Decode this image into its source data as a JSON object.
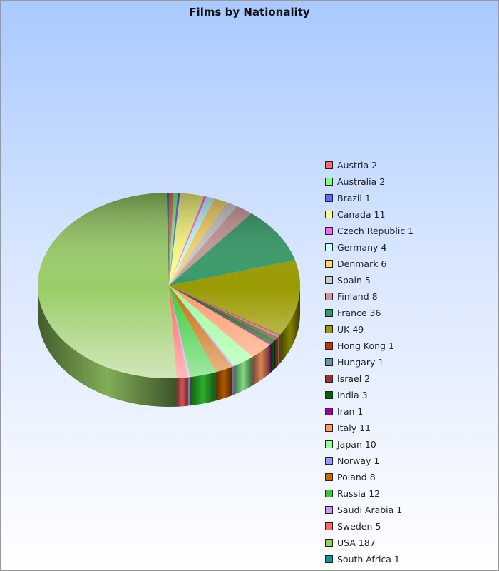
{
  "chart_data": {
    "type": "pie",
    "style": "3d",
    "title": "Films by Nationality",
    "legend_position": "right",
    "start_angle": "top, clockwise",
    "slices": [
      {
        "label": "Austria",
        "value": 2,
        "color": "#ff6666"
      },
      {
        "label": "Australia",
        "value": 2,
        "color": "#80ff80"
      },
      {
        "label": "Brazil",
        "value": 1,
        "color": "#6666ff"
      },
      {
        "label": "Canada",
        "value": 11,
        "color": "#ffff80"
      },
      {
        "label": "Czech Republic",
        "value": 1,
        "color": "#ff66ff"
      },
      {
        "label": "Germany",
        "value": 4,
        "color": "#ccffff"
      },
      {
        "label": "Denmark",
        "value": 6,
        "color": "#ffd966"
      },
      {
        "label": "Spain",
        "value": 5,
        "color": "#cccccc"
      },
      {
        "label": "Finland",
        "value": 8,
        "color": "#cc9999"
      },
      {
        "label": "France",
        "value": 36,
        "color": "#339966"
      },
      {
        "label": "UK",
        "value": 49,
        "color": "#999900"
      },
      {
        "label": "Hong Kong",
        "value": 1,
        "color": "#cc3300"
      },
      {
        "label": "Hungary",
        "value": 1,
        "color": "#669999"
      },
      {
        "label": "Israel",
        "value": 2,
        "color": "#993333"
      },
      {
        "label": "India",
        "value": 3,
        "color": "#006600"
      },
      {
        "label": "Iran",
        "value": 1,
        "color": "#990099"
      },
      {
        "label": "Italy",
        "value": 11,
        "color": "#ff9966"
      },
      {
        "label": "Japan",
        "value": 10,
        "color": "#99ff99"
      },
      {
        "label": "Norway",
        "value": 1,
        "color": "#9999ff"
      },
      {
        "label": "Poland",
        "value": 8,
        "color": "#cc6600"
      },
      {
        "label": "Russia",
        "value": 12,
        "color": "#33cc33"
      },
      {
        "label": "Saudi Arabia",
        "value": 1,
        "color": "#cc99ff"
      },
      {
        "label": "Sweden",
        "value": 5,
        "color": "#ff6666"
      },
      {
        "label": "USA",
        "value": 187,
        "color": "#99cc66"
      },
      {
        "label": "South Africa",
        "value": 1,
        "color": "#009999"
      }
    ]
  }
}
